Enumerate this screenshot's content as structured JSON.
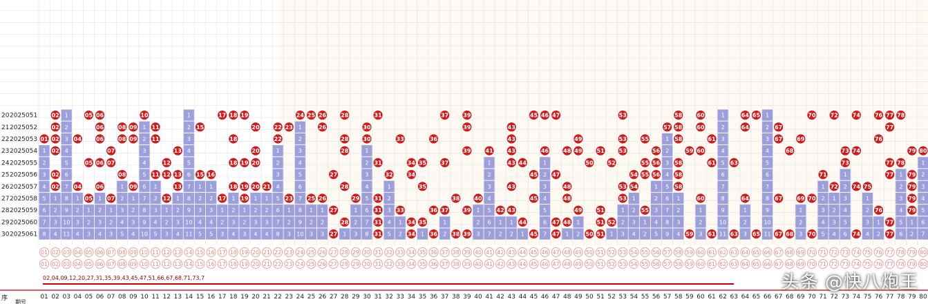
{
  "chart_data": {
    "type": "table",
    "periods": [
      {
        "seq": "20",
        "issue": "2025051",
        "numbers": [
          2,
          5,
          6,
          10,
          17,
          18,
          19,
          24,
          25,
          26,
          28,
          31,
          37,
          39,
          45,
          46,
          47,
          53,
          58,
          60,
          64,
          65,
          70,
          72,
          74,
          76,
          77,
          78
        ]
      },
      {
        "seq": "21",
        "issue": "2025052",
        "numbers": [
          2,
          6,
          8,
          9,
          11,
          15,
          20,
          22,
          23,
          26,
          30,
          39,
          43,
          57,
          58,
          60,
          64,
          67,
          77
        ]
      },
      {
        "seq": "22",
        "issue": "2025053",
        "numbers": [
          1,
          2,
          4,
          6,
          8,
          9,
          11,
          18,
          22,
          28,
          30,
          33,
          36,
          43,
          49,
          53,
          55,
          58,
          61,
          67,
          69,
          76
        ]
      },
      {
        "seq": "23",
        "issue": "2025054",
        "numbers": [
          2,
          7,
          13,
          20,
          28,
          39,
          41,
          43,
          46,
          48,
          49,
          51,
          53,
          56,
          59,
          60,
          68,
          73,
          74,
          79,
          80
        ]
      },
      {
        "seq": "24",
        "issue": "2025055",
        "numbers": [
          5,
          6,
          7,
          12,
          18,
          19,
          20,
          31,
          34,
          35,
          37,
          43,
          44,
          50,
          52,
          55,
          56,
          58,
          61,
          63,
          73,
          77,
          78
        ]
      },
      {
        "seq": "25",
        "issue": "2025056",
        "numbers": [
          2,
          8,
          11,
          12,
          13,
          15,
          16,
          27,
          32,
          34,
          45,
          47,
          54,
          55,
          56,
          58,
          71,
          77,
          79
        ]
      },
      {
        "seq": "26",
        "issue": "2025057",
        "numbers": [
          2,
          4,
          6,
          9,
          13,
          18,
          19,
          20,
          21,
          28,
          35,
          43,
          48,
          53,
          54,
          58,
          72,
          74,
          75,
          79
        ]
      },
      {
        "seq": "27",
        "issue": "2025058",
        "numbers": [
          5,
          7,
          12,
          17,
          19,
          23,
          25,
          26,
          29,
          31,
          38,
          40,
          45,
          48,
          53,
          60,
          64,
          67,
          69,
          70,
          79
        ]
      },
      {
        "seq": "28",
        "issue": "2025059",
        "numbers": [
          27,
          31,
          33,
          36,
          37,
          39,
          42,
          43,
          49,
          51,
          55,
          76,
          79
        ]
      },
      {
        "seq": "29",
        "issue": "2025060",
        "numbers": [
          28,
          31,
          34,
          35,
          44,
          47,
          48,
          51,
          52,
          77
        ]
      },
      {
        "seq": "30",
        "issue": "2025061",
        "numbers": [
          27,
          31,
          34,
          36,
          38,
          39,
          45,
          47,
          50,
          51,
          59,
          61,
          63,
          65,
          67,
          68,
          70,
          74,
          77
        ]
      }
    ],
    "columns": [
      "01",
      "02",
      "03",
      "04",
      "05",
      "06",
      "07",
      "08",
      "09",
      "10",
      "11",
      "12",
      "13",
      "14",
      "15",
      "16",
      "17",
      "18",
      "19",
      "20",
      "21",
      "22",
      "23",
      "24",
      "25",
      "26",
      "27",
      "28",
      "29",
      "30",
      "31",
      "32",
      "33",
      "34",
      "35",
      "36",
      "37",
      "38",
      "39",
      "40",
      "41",
      "42",
      "43",
      "44",
      "45",
      "46",
      "47",
      "48",
      "49",
      "50",
      "51",
      "52",
      "53",
      "54",
      "55",
      "56",
      "57",
      "58",
      "59",
      "60",
      "61",
      "62",
      "63",
      "64",
      "65",
      "66",
      "67",
      "68",
      "69",
      "70",
      "71",
      "72",
      "73",
      "74",
      "75",
      "76",
      "77",
      "78",
      "79",
      "80"
    ],
    "prediction_text": "02,04,09,12,20,27,31,35,39,43,45,47,51,66,67,68,71,73,7",
    "colors": {
      "hit": "#c81e1e",
      "bar": "#8c8fd6",
      "grid": "#e2e2e2",
      "warm_bg": "#fdf4ea"
    }
  },
  "header": {
    "seq_label": "序",
    "period_label": "期号"
  },
  "watermark": "头条 @快八炮王"
}
